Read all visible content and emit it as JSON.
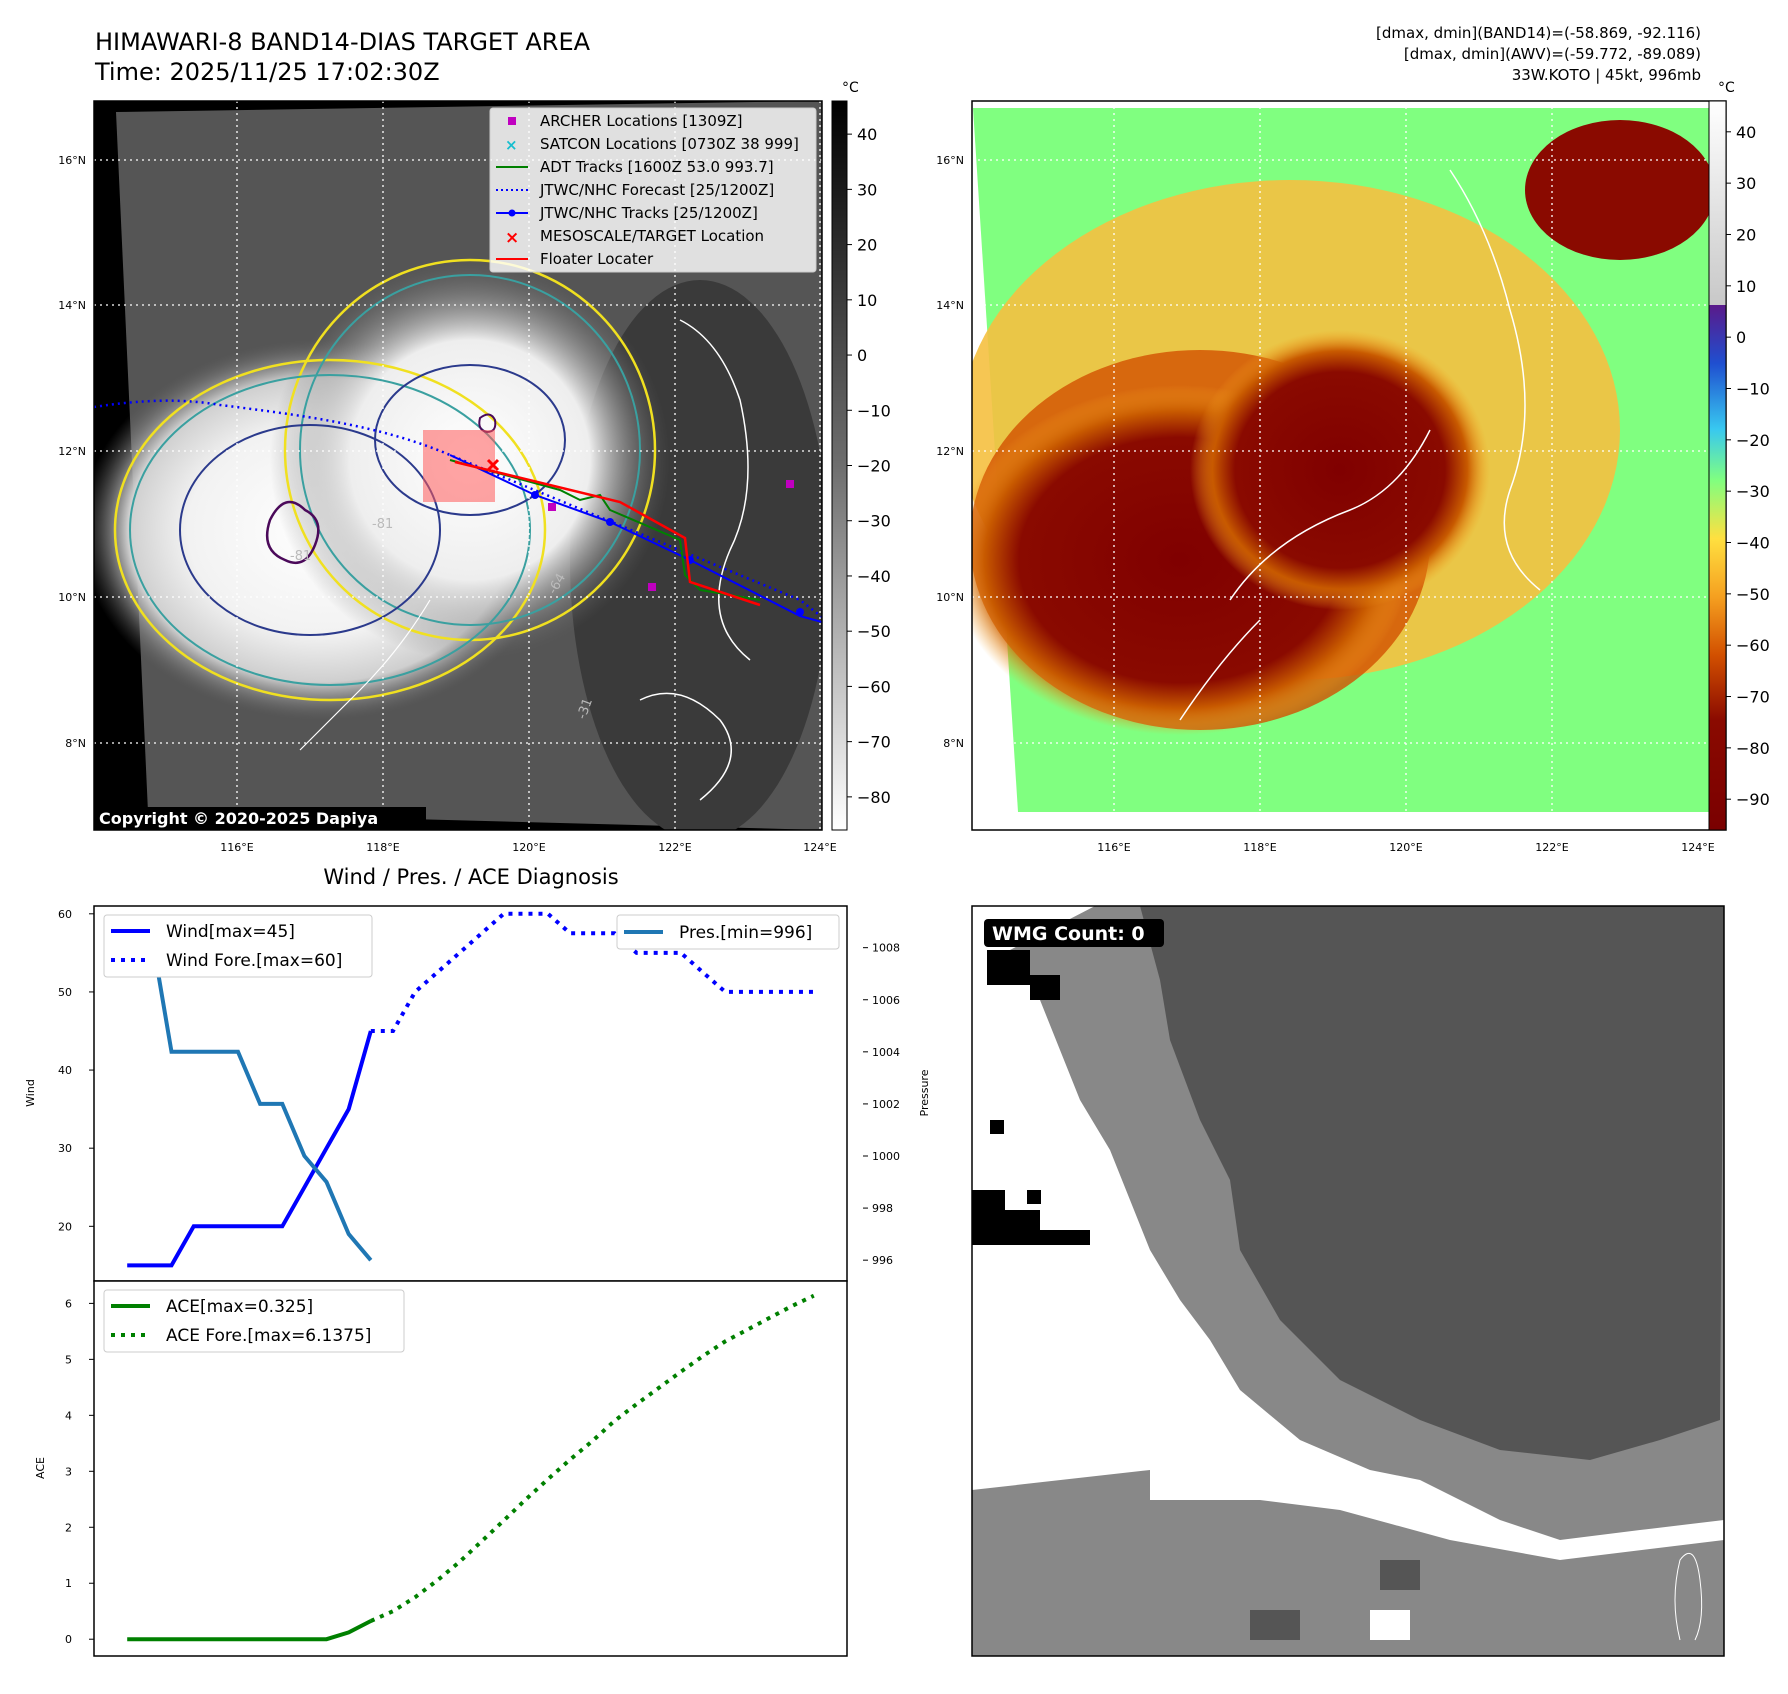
{
  "header": {
    "title_line1": "HIMAWARI-8 BAND14-DIAS TARGET AREA",
    "title_line2": "Time: 2025/11/25 17:02:30Z",
    "info_line1": "[dmax, dmin](BAND14)=(-58.869, -92.116)",
    "info_line2": "[dmax, dmin](AWV)=(-59.772, -89.089)",
    "info_line3": "33W.KOTO | 45kt, 996mb"
  },
  "map_common": {
    "lat_labels": [
      "16°N",
      "14°N",
      "12°N",
      "10°N",
      "8°N"
    ],
    "lon_labels": [
      "116°E",
      "118°E",
      "120°E",
      "122°E",
      "124°E"
    ]
  },
  "map1": {
    "colorbar_unit": "°C",
    "colorbar_ticks": [
      "40",
      "30",
      "20",
      "10",
      "0",
      "−10",
      "−20",
      "−30",
      "−40",
      "−50",
      "−60",
      "−70",
      "−80"
    ],
    "copyright": "Copyright © 2020-2025 Dapiya",
    "legend": [
      {
        "label": "ARCHER Locations [1309Z]",
        "color": "#c000c0"
      },
      {
        "label": "SATCON Locations [0730Z 38 999]",
        "color": "#17becf"
      },
      {
        "label": "ADT Tracks [1600Z 53.0 993.7]",
        "color": "#008000"
      },
      {
        "label": "JTWC/NHC Forecast [25/1200Z]",
        "color": "#0000ff"
      },
      {
        "label": "JTWC/NHC Tracks [25/1200Z]",
        "color": "#0000ff"
      },
      {
        "label": "MESOSCALE/TARGET Location",
        "color": "#ff0000"
      },
      {
        "label": "Floater Locater",
        "color": "#ff0000"
      }
    ],
    "contour_labels": [
      "-81",
      "-64",
      "-81",
      "-31",
      "-31",
      "-31"
    ]
  },
  "map2": {
    "colorbar_unit": "°C",
    "colorbar_ticks": [
      "40",
      "30",
      "20",
      "10",
      "0",
      "−10",
      "−20",
      "−30",
      "−40",
      "−50",
      "−60",
      "−70",
      "−80",
      "−90"
    ]
  },
  "chart_data": [
    {
      "type": "line",
      "title": "Wind / Pres. / ACE Diagnosis",
      "ylabel": "Wind",
      "ylim": [
        13,
        61
      ],
      "y_ticks": [
        "60",
        "50",
        "40",
        "30",
        "20"
      ],
      "series": [
        {
          "name": "Wind[max=45]",
          "style": "solid",
          "color": "#0000ff",
          "x": [
            0,
            1,
            2,
            3,
            4,
            5,
            6,
            7,
            8,
            9,
            10,
            11
          ],
          "values": [
            15,
            15,
            15,
            20,
            20,
            20,
            20,
            20,
            25,
            30,
            35,
            45
          ]
        },
        {
          "name": "Wind Fore.[max=60]",
          "style": "dotted",
          "color": "#0000ff",
          "x": [
            11,
            12,
            13,
            14,
            15,
            16,
            17,
            18,
            19,
            20,
            21,
            22,
            23,
            24,
            25,
            26,
            27,
            28,
            29,
            30,
            31
          ],
          "values": [
            45,
            45,
            50,
            52.5,
            55,
            57.5,
            60,
            60,
            60,
            57.5,
            57.5,
            57.5,
            55,
            55,
            55,
            52.5,
            50,
            50,
            50,
            50,
            50
          ]
        }
      ],
      "secondary": {
        "ylabel": "Pressure",
        "ylim": [
          995.2,
          1009.6
        ],
        "y_ticks": [
          "1008",
          "1006",
          "1004",
          "1002",
          "1000",
          "998",
          "996"
        ],
        "series": [
          {
            "name": "Pres.[min=996]",
            "style": "solid",
            "color": "#1f77b4",
            "x": [
              0,
              1,
              2,
              3,
              4,
              5,
              6,
              7,
              8,
              9,
              10,
              11
            ],
            "values": [
              1009,
              1009,
              1004,
              1004,
              1004,
              1004,
              1002,
              1002,
              1000,
              999,
              997,
              996
            ]
          }
        ]
      },
      "xlim": [
        -1.5,
        32.5
      ]
    },
    {
      "type": "line",
      "ylabel": "ACE",
      "ylim": [
        -0.3,
        6.4
      ],
      "y_ticks": [
        "6",
        "5",
        "4",
        "3",
        "2",
        "1",
        "0"
      ],
      "series": [
        {
          "name": "ACE[max=0.325]",
          "style": "solid",
          "color": "#008000",
          "x": [
            0,
            1,
            2,
            3,
            4,
            5,
            6,
            7,
            8,
            9,
            10,
            11
          ],
          "values": [
            0,
            0,
            0,
            0,
            0,
            0,
            0,
            0,
            0,
            0.0,
            0.1225,
            0.325
          ]
        },
        {
          "name": "ACE Fore.[max=6.1375]",
          "style": "dotted",
          "color": "#008000",
          "x": [
            11,
            12,
            13,
            14,
            15,
            16,
            17,
            18,
            19,
            20,
            21,
            22,
            23,
            24,
            25,
            26,
            27,
            28,
            29,
            30,
            31
          ],
          "values": [
            0.325,
            0.5,
            0.75,
            1.05,
            1.38,
            1.75,
            2.12,
            2.5,
            2.86,
            3.21,
            3.54,
            3.9,
            4.2,
            4.49,
            4.78,
            5.06,
            5.32,
            5.53,
            5.74,
            5.95,
            6.1375
          ]
        }
      ],
      "xlim": [
        -1.5,
        32.5
      ]
    }
  ],
  "wmg_panel": {
    "label": "WMG Count: 0"
  }
}
